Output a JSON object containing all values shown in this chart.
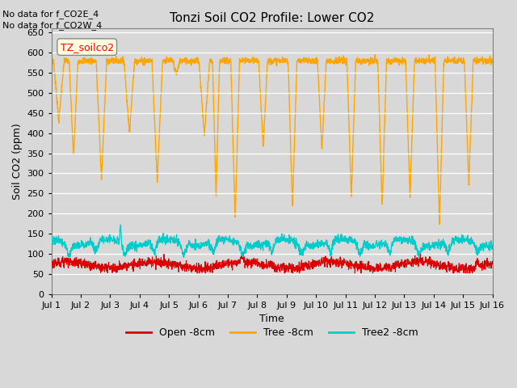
{
  "title": "Tonzi Soil CO2 Profile: Lower CO2",
  "xlabel": "Time",
  "ylabel": "Soil CO2 (ppm)",
  "ylim": [
    0,
    660
  ],
  "yticks": [
    0,
    50,
    100,
    150,
    200,
    250,
    300,
    350,
    400,
    450,
    500,
    550,
    600,
    650
  ],
  "xticklabels": [
    "Jul 1",
    "Jul 2",
    "Jul 3",
    "Jul 4",
    "Jul 5",
    "Jul 6",
    "Jul 7",
    "Jul 8",
    "Jul 9",
    "Jul 10",
    "Jul 11",
    "Jul 12",
    "Jul 13",
    "Jul 14",
    "Jul 15",
    "Jul 16"
  ],
  "annotation_lines": [
    "No data for f_CO2E_4",
    "No data for f_CO2W_4"
  ],
  "legend_label": "TZ_soilco2",
  "legend_entries": [
    "Open -8cm",
    "Tree -8cm",
    "Tree2 -8cm"
  ],
  "legend_colors": [
    "#dd0000",
    "#ffa500",
    "#00cccc"
  ],
  "line_colors": {
    "open": "#dd0000",
    "tree": "#ffa500",
    "tree2": "#00cccc"
  },
  "bg_color": "#d8d8d8",
  "plot_bg": "#d8d8d8",
  "n_days": 15,
  "pts_per_day": 144,
  "tree_base": 580,
  "tree_dip_min": 175,
  "open_base": 72,
  "tree2_base": 125
}
